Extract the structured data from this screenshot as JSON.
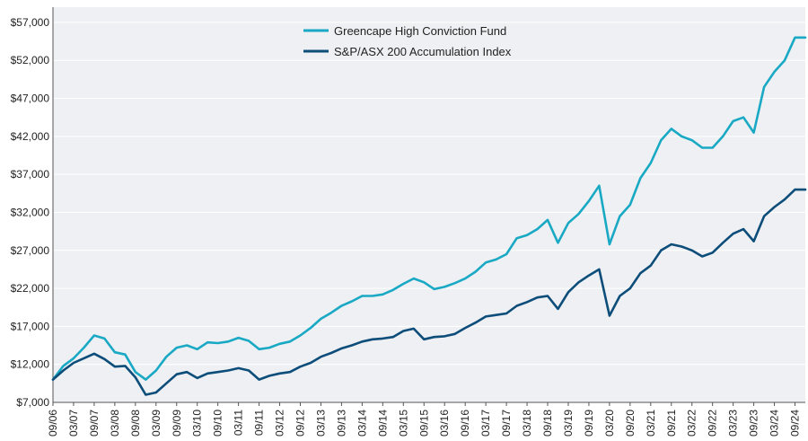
{
  "chart_data": {
    "type": "line",
    "title": "",
    "xlabel": "",
    "ylabel": "",
    "ylim": [
      7000,
      59000
    ],
    "y_ticks": [
      7000,
      12000,
      17000,
      22000,
      27000,
      32000,
      37000,
      42000,
      47000,
      52000,
      57000
    ],
    "y_tick_labels": [
      "$7,000",
      "$12,000",
      "$17,000",
      "$22,000",
      "$27,000",
      "$32,000",
      "$37,000",
      "$42,000",
      "$47,000",
      "$52,000",
      "$57,000"
    ],
    "x_tick_labels": [
      "09/06",
      "03/07",
      "09/07",
      "03/08",
      "09/08",
      "03/09",
      "09/09",
      "03/10",
      "09/10",
      "03/11",
      "09/11",
      "03/12",
      "09/12",
      "03/13",
      "09/13",
      "03/14",
      "09/14",
      "03/15",
      "09/15",
      "03/16",
      "09/16",
      "03/17",
      "09/17",
      "03/18",
      "09/18",
      "03/19",
      "09/19",
      "03/20",
      "09/20",
      "03/21",
      "09/21",
      "03/22",
      "09/22",
      "03/23",
      "09/23",
      "03/24",
      "09/24"
    ],
    "grid": true,
    "legend_position": "top-center",
    "x": [
      "09/06",
      "12/06",
      "03/07",
      "06/07",
      "09/07",
      "12/07",
      "03/08",
      "06/08",
      "09/08",
      "12/08",
      "03/09",
      "06/09",
      "09/09",
      "12/09",
      "03/10",
      "06/10",
      "09/10",
      "12/10",
      "03/11",
      "06/11",
      "09/11",
      "12/11",
      "03/12",
      "06/12",
      "09/12",
      "12/12",
      "03/13",
      "06/13",
      "09/13",
      "12/13",
      "03/14",
      "06/14",
      "09/14",
      "12/14",
      "03/15",
      "06/15",
      "09/15",
      "12/15",
      "03/16",
      "06/16",
      "09/16",
      "12/16",
      "03/17",
      "06/17",
      "09/17",
      "12/17",
      "03/18",
      "06/18",
      "09/18",
      "12/18",
      "03/19",
      "06/19",
      "09/19",
      "12/19",
      "03/20",
      "06/20",
      "09/20",
      "12/20",
      "03/21",
      "06/21",
      "09/21",
      "12/21",
      "03/22",
      "06/22",
      "09/22",
      "12/22",
      "03/23",
      "06/23",
      "09/23",
      "12/23",
      "03/24",
      "06/24",
      "09/24",
      "12/24"
    ],
    "series": [
      {
        "name": "Greencape High Conviction Fund",
        "color": "#1aa9c4",
        "values": [
          10000,
          11800,
          12800,
          14200,
          15800,
          15400,
          13600,
          13300,
          11000,
          10000,
          11200,
          13000,
          14200,
          14500,
          14000,
          14900,
          14800,
          15000,
          15500,
          15100,
          14000,
          14200,
          14700,
          15000,
          15800,
          16800,
          18000,
          18800,
          19700,
          20300,
          21000,
          21000,
          21200,
          21800,
          22600,
          23300,
          22800,
          21900,
          22200,
          22700,
          23300,
          24200,
          25400,
          25800,
          26500,
          28600,
          29000,
          29800,
          31000,
          28000,
          30600,
          31800,
          33500,
          35500,
          27800,
          31500,
          33000,
          36500,
          38500,
          41500,
          43000,
          42000,
          41500,
          40500,
          40500,
          42000,
          44000,
          44500,
          42500,
          48500,
          50500,
          52000,
          55000,
          55000
        ]
      },
      {
        "name": "S&P/ASX 200 Accumulation Index",
        "color": "#0d4d7a",
        "values": [
          10000,
          11200,
          12200,
          12800,
          13400,
          12700,
          11700,
          11800,
          10300,
          8000,
          8300,
          9500,
          10700,
          11000,
          10200,
          10800,
          11000,
          11200,
          11500,
          11200,
          10000,
          10500,
          10800,
          11000,
          11700,
          12200,
          13000,
          13500,
          14100,
          14500,
          15000,
          15300,
          15400,
          15600,
          16400,
          16700,
          15300,
          15600,
          15700,
          16000,
          16800,
          17500,
          18300,
          18500,
          18700,
          19700,
          20200,
          20800,
          21000,
          19300,
          21500,
          22800,
          23700,
          24500,
          18400,
          21000,
          22000,
          24000,
          25000,
          27000,
          27800,
          27500,
          27000,
          26200,
          26700,
          28000,
          29200,
          29800,
          28200,
          31500,
          32700,
          33700,
          35000,
          35000
        ]
      }
    ]
  }
}
